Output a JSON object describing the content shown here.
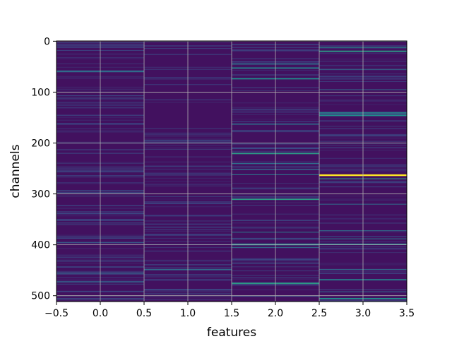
{
  "chart_data": {
    "type": "heatmap",
    "title": "",
    "xlabel": "features",
    "ylabel": "channels",
    "xlim": [
      -0.5,
      3.5
    ],
    "ylim": [
      511.5,
      -0.5
    ],
    "y_inverted": true,
    "n_rows": 512,
    "n_cols": 4,
    "colormap": "viridis",
    "grid": true,
    "xticks": [
      -0.5,
      0.0,
      0.5,
      1.0,
      1.5,
      2.0,
      2.5,
      3.0,
      3.5
    ],
    "xtick_labels": [
      "−0.5",
      "0.0",
      "0.5",
      "1.0",
      "1.5",
      "2.0",
      "2.5",
      "3.0",
      "3.5"
    ],
    "yticks": [
      0,
      100,
      200,
      300,
      400,
      500
    ],
    "ytick_labels": [
      "0",
      "100",
      "200",
      "300",
      "400",
      "500"
    ],
    "background_value": 0.05,
    "highlights": [
      {
        "col": 0,
        "rows": [
          58,
          59,
          60
        ],
        "value": 0.35
      },
      {
        "col": 0,
        "rows": [
          395
        ],
        "value": 0.3
      },
      {
        "col": 0,
        "rows": [
          455,
          456
        ],
        "value": 0.3
      },
      {
        "col": 0,
        "rows": [
          472,
          473
        ],
        "value": 0.3
      },
      {
        "col": 0,
        "rows": [
          500
        ],
        "value": 0.25
      },
      {
        "col": 1,
        "rows": [
          448,
          449
        ],
        "value": 0.35
      },
      {
        "col": 1,
        "rows": [
          365
        ],
        "value": 0.25
      },
      {
        "col": 2,
        "rows": [
          44,
          45
        ],
        "value": 0.35
      },
      {
        "col": 2,
        "rows": [
          52,
          53
        ],
        "value": 0.45
      },
      {
        "col": 2,
        "rows": [
          73,
          74
        ],
        "value": 0.5
      },
      {
        "col": 2,
        "rows": [
          163
        ],
        "value": 0.4
      },
      {
        "col": 2,
        "rows": [
          220,
          221
        ],
        "value": 0.55
      },
      {
        "col": 2,
        "rows": [
          240
        ],
        "value": 0.35
      },
      {
        "col": 2,
        "rows": [
          252
        ],
        "value": 0.35
      },
      {
        "col": 2,
        "rows": [
          262
        ],
        "value": 0.4
      },
      {
        "col": 2,
        "rows": [
          310,
          311
        ],
        "value": 0.55
      },
      {
        "col": 2,
        "rows": [
          375
        ],
        "value": 0.4
      },
      {
        "col": 2,
        "rows": [
          398,
          399,
          400
        ],
        "value": 0.45
      },
      {
        "col": 2,
        "rows": [
          405
        ],
        "value": 0.35
      },
      {
        "col": 2,
        "rows": [
          475,
          476
        ],
        "value": 0.55
      },
      {
        "col": 3,
        "rows": [
          12
        ],
        "value": 0.5
      },
      {
        "col": 3,
        "rows": [
          19,
          20
        ],
        "value": 0.55
      },
      {
        "col": 3,
        "rows": [
          55
        ],
        "value": 0.35
      },
      {
        "col": 3,
        "rows": [
          95
        ],
        "value": 0.35
      },
      {
        "col": 3,
        "rows": [
          140,
          141
        ],
        "value": 0.45
      },
      {
        "col": 3,
        "rows": [
          145,
          146
        ],
        "value": 0.5
      },
      {
        "col": 3,
        "rows": [
          200
        ],
        "value": 0.35
      },
      {
        "col": 3,
        "rows": [
          262,
          263,
          264
        ],
        "value": 1.0
      },
      {
        "col": 3,
        "rows": [
          270
        ],
        "value": 0.55
      },
      {
        "col": 3,
        "rows": [
          320
        ],
        "value": 0.35
      },
      {
        "col": 3,
        "rows": [
          372
        ],
        "value": 0.35
      },
      {
        "col": 3,
        "rows": [
          388
        ],
        "value": 0.4
      },
      {
        "col": 3,
        "rows": [
          398,
          399
        ],
        "value": 0.4
      },
      {
        "col": 3,
        "rows": [
          448
        ],
        "value": 0.35
      },
      {
        "col": 3,
        "rows": [
          468,
          469
        ],
        "value": 0.45
      },
      {
        "col": 3,
        "rows": [
          492
        ],
        "value": 0.35
      },
      {
        "col": 3,
        "rows": [
          505,
          506
        ],
        "value": 0.5
      }
    ]
  }
}
